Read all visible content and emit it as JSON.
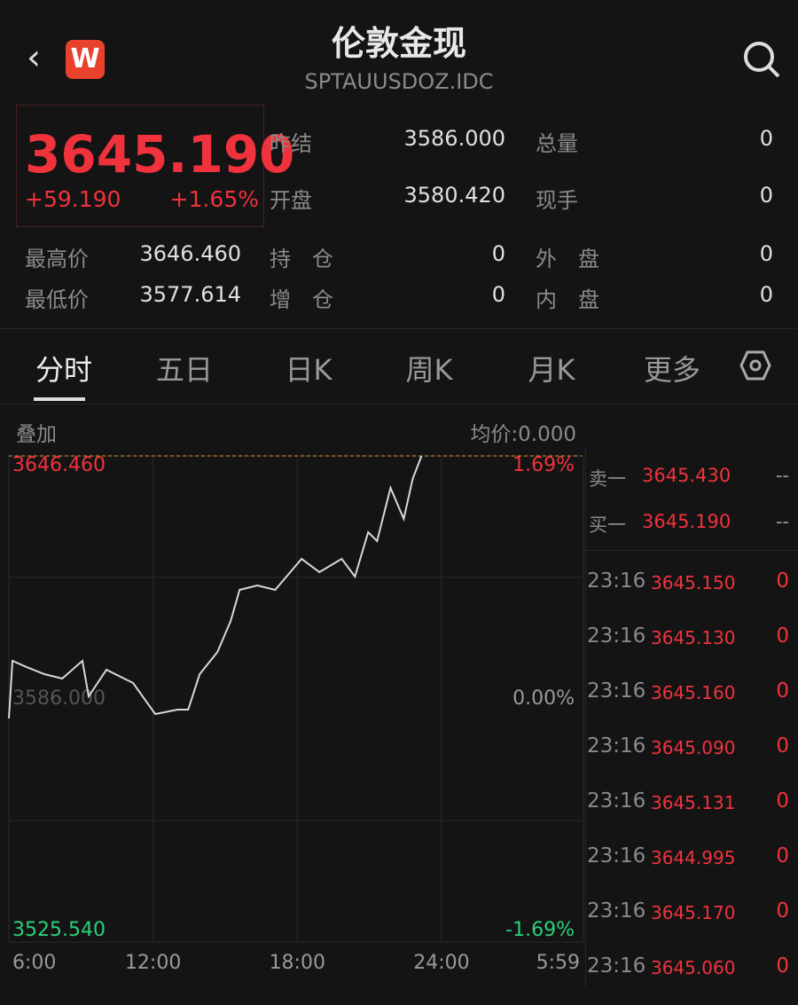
{
  "header": {
    "title": "伦敦金现",
    "code": "SPTAUUSDOZ.IDC",
    "logo": "W"
  },
  "quote": {
    "price": "3645.190",
    "change": "+59.190",
    "percent": "+1.65%"
  },
  "stats": [
    [
      "昨结",
      "3586.000"
    ],
    [
      "总量",
      "0"
    ],
    [
      "开盘",
      "3580.420"
    ],
    [
      "现手",
      "0"
    ],
    [
      "最高价",
      "3646.460"
    ],
    [
      "持　仓",
      "0"
    ],
    [
      "外　盘",
      "0"
    ],
    [
      "最低价",
      "3577.614"
    ],
    [
      "增　仓",
      "0"
    ],
    [
      "内　盘",
      "0"
    ]
  ],
  "tabs": [
    "分时",
    "五日",
    "日K",
    "周K",
    "月K",
    "更多"
  ],
  "toolbar": {
    "overlay": "叠加",
    "avg": "均价:0.000"
  },
  "chart_data": {
    "type": "line",
    "x": [
      0,
      0.15,
      0.74,
      1.48,
      2.22,
      3.06,
      3.32,
      4.06,
      5.17,
      6.09,
      7.02,
      7.46,
      7.94,
      8.68,
      9.23,
      9.6,
      10.34,
      11.08,
      12.18,
      12.92,
      13.85,
      14.4,
      14.95,
      15.32,
      15.88,
      16.43,
      16.8,
      17.17
    ],
    "series": [
      {
        "color": "#d8d8d8",
        "values": [
          3581.15,
          3595.49,
          3593.94,
          3592.18,
          3591.08,
          3595.49,
          3586.66,
          3593.28,
          3589.97,
          3582.25,
          3583.35,
          3583.35,
          3592.18,
          3597.7,
          3605.42,
          3613.14,
          3614.24,
          3613.14,
          3620.86,
          3617.55,
          3620.86,
          3616.45,
          3627.48,
          3625.28,
          3638.52,
          3630.79,
          3640.72,
          3646.46
        ]
      }
    ],
    "xlim": [
      0,
      23.98
    ],
    "xticks": [
      {
        "value": 0,
        "label": "6:00"
      },
      {
        "value": 6,
        "label": "12:00"
      },
      {
        "value": 12,
        "label": "18:00"
      },
      {
        "value": 18,
        "label": "24:00"
      },
      {
        "value": 23.98,
        "label": "5:59"
      }
    ],
    "ylim": [
      3525.54,
      3646.46
    ],
    "yticks": [
      {
        "value": 3646.46,
        "label": "3646.460"
      },
      {
        "value": 3586,
        "label": "3586.000"
      },
      {
        "value": 3525.54,
        "label": "3525.540"
      }
    ],
    "y2lim": [
      -1.69,
      1.69
    ],
    "y2ticks": [
      {
        "value": 1.69,
        "label": "1.69%"
      },
      {
        "value": 0,
        "label": "0.00%"
      },
      {
        "value": -1.69,
        "label": "-1.69%"
      }
    ]
  },
  "orderbook": [
    [
      "卖一",
      "3645.430",
      "--"
    ],
    [
      "买一",
      "3645.190",
      "--"
    ]
  ],
  "trades": [
    [
      "23:16",
      "3645.150",
      "0"
    ],
    [
      "23:16",
      "3645.130",
      "0"
    ],
    [
      "23:16",
      "3645.160",
      "0"
    ],
    [
      "23:16",
      "3645.090",
      "0"
    ],
    [
      "23:16",
      "3645.131",
      "0"
    ],
    [
      "23:16",
      "3644.995",
      "0"
    ],
    [
      "23:16",
      "3645.170",
      "0"
    ],
    [
      "23:16",
      "3645.060",
      "0"
    ]
  ]
}
